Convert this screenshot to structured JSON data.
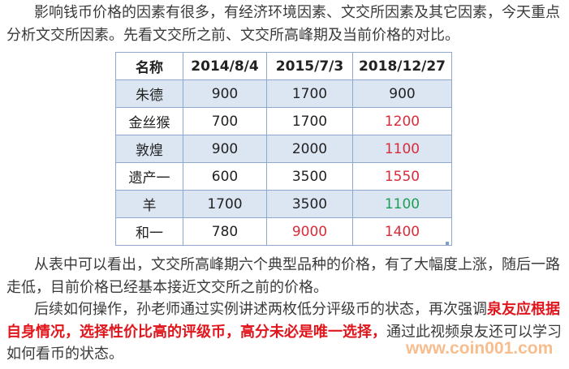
{
  "paragraphs": {
    "p1": "影响钱币价格的因素有很多，有经济环境因素、文交所因素及其它因素，今天重点分析文交所因素。先看文交所之前、文交所高峰期及当前价格的对比。",
    "p2": "从表中可以看出，文交所高峰期六个典型品种的价格，有了大幅度上涨，随后一路走低，目前价格已经基本接近文交所之前的价格。",
    "p3_before": "后续如何操作，孙老师通过实例讲述两枚低分评级币的状态，再次强调",
    "p3_highlight": "泉友应根据自身情况，选择性价比高的评级币，高分未必是唯一选择，",
    "p3_after": "通过此视频泉友还可以学习如何看币的状态。"
  },
  "table": {
    "headers": [
      "名称",
      "2014/8/4",
      "2015/7/3",
      "2018/12/27"
    ],
    "rows": [
      {
        "name": "朱德",
        "v1": "900",
        "v2": "1700",
        "v3": "900"
      },
      {
        "name": "金丝猴",
        "v1": "700",
        "v2": "1700",
        "v3": "1200"
      },
      {
        "name": "敦煌",
        "v1": "900",
        "v2": "2000",
        "v3": "1100"
      },
      {
        "name": "遗产一",
        "v1": "600",
        "v2": "3500",
        "v3": "1550"
      },
      {
        "name": "羊",
        "v1": "1700",
        "v2": "3500",
        "v3": "1100"
      },
      {
        "name": "和一",
        "v1": "780",
        "v2": "9000",
        "v3": "1400"
      }
    ]
  },
  "colors": {
    "highlight": "#e0161c",
    "red_value": "#d92b3a",
    "green_value": "#1f9d55",
    "row_alt": "#dce6f3"
  },
  "watermark": "www.coin001.com"
}
